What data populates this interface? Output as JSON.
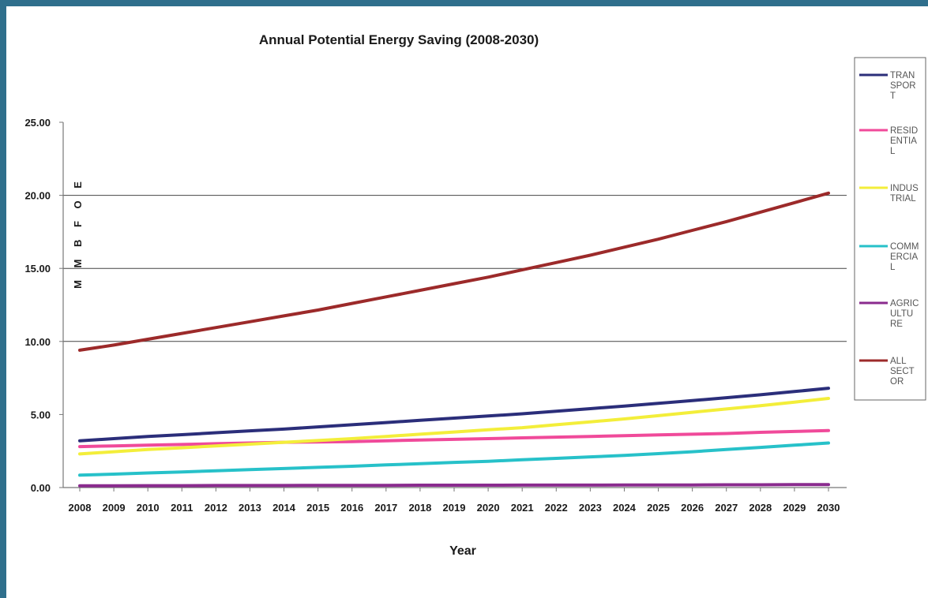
{
  "chart_data": {
    "type": "line",
    "title": "Annual Potential  Energy Saving (2008-2030)",
    "xlabel": "Year",
    "ylabel": "M M B F O E",
    "ylim": [
      0,
      25
    ],
    "yticks": [
      "0.00",
      "5.00",
      "10.00",
      "15.00",
      "20.00",
      "25.00"
    ],
    "grid": "horizontal at 10, 15, 20",
    "legend_position": "right",
    "x": [
      2008,
      2009,
      2010,
      2011,
      2012,
      2013,
      2014,
      2015,
      2016,
      2017,
      2018,
      2019,
      2020,
      2021,
      2022,
      2023,
      2024,
      2025,
      2026,
      2027,
      2028,
      2029,
      2030
    ],
    "series": [
      {
        "name": "TRANSPORT",
        "legend_lines": [
          "TRAN",
          "SPOR",
          "T"
        ],
        "color": "#2b2e7a",
        "values": [
          3.2,
          3.35,
          3.5,
          3.62,
          3.75,
          3.88,
          4.0,
          4.15,
          4.3,
          4.45,
          4.6,
          4.75,
          4.9,
          5.05,
          5.22,
          5.4,
          5.58,
          5.76,
          5.95,
          6.15,
          6.35,
          6.57,
          6.8
        ]
      },
      {
        "name": "RESIDENTIAL",
        "legend_lines": [
          "RESID",
          "ENTIA",
          "L"
        ],
        "color": "#f04a9a",
        "values": [
          2.8,
          2.85,
          2.9,
          2.95,
          3.0,
          3.05,
          3.1,
          3.12,
          3.15,
          3.2,
          3.25,
          3.3,
          3.35,
          3.4,
          3.45,
          3.5,
          3.55,
          3.6,
          3.65,
          3.7,
          3.78,
          3.84,
          3.9
        ]
      },
      {
        "name": "INDUSTRIAL",
        "legend_lines": [
          "INDUS",
          "TRIAL"
        ],
        "color": "#f3ee3a",
        "values": [
          2.3,
          2.45,
          2.6,
          2.72,
          2.85,
          2.97,
          3.1,
          3.22,
          3.35,
          3.5,
          3.65,
          3.8,
          3.95,
          4.1,
          4.3,
          4.5,
          4.7,
          4.92,
          5.15,
          5.38,
          5.6,
          5.85,
          6.1
        ]
      },
      {
        "name": "COMMERCIAL",
        "legend_lines": [
          "COMM",
          "ERCIA",
          "L"
        ],
        "color": "#27c1c9",
        "values": [
          0.85,
          0.92,
          1.0,
          1.07,
          1.15,
          1.23,
          1.3,
          1.38,
          1.46,
          1.55,
          1.63,
          1.72,
          1.8,
          1.9,
          2.0,
          2.1,
          2.2,
          2.32,
          2.45,
          2.6,
          2.75,
          2.9,
          3.05
        ]
      },
      {
        "name": "AGRICULTURE",
        "legend_lines": [
          "AGRIC",
          "ULTU",
          "RE"
        ],
        "color": "#8a2b8e",
        "values": [
          0.12,
          0.12,
          0.13,
          0.13,
          0.14,
          0.14,
          0.14,
          0.15,
          0.15,
          0.15,
          0.16,
          0.16,
          0.16,
          0.17,
          0.17,
          0.17,
          0.18,
          0.18,
          0.18,
          0.19,
          0.19,
          0.2,
          0.2
        ]
      },
      {
        "name": "ALL SECTOR",
        "legend_lines": [
          "ALL",
          "SECT",
          "OR"
        ],
        "color": "#9c2a2a",
        "values": [
          9.4,
          9.75,
          10.15,
          10.55,
          10.95,
          11.35,
          11.75,
          12.15,
          12.6,
          13.05,
          13.5,
          13.95,
          14.4,
          14.9,
          15.4,
          15.9,
          16.45,
          17.0,
          17.6,
          18.2,
          18.85,
          19.5,
          20.15
        ]
      }
    ]
  }
}
